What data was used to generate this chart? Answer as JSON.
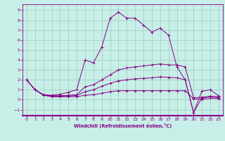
{
  "xlabel": "Windchill (Refroidissement éolien,°C)",
  "bg_color": "#c8eee8",
  "line_color": "#880088",
  "grid_color": "#99ccbb",
  "axis_color": "#880088",
  "xlim": [
    -0.5,
    23.5
  ],
  "ylim": [
    -1.6,
    9.6
  ],
  "xticks": [
    0,
    1,
    2,
    3,
    4,
    5,
    6,
    7,
    8,
    9,
    10,
    11,
    12,
    13,
    14,
    15,
    16,
    17,
    18,
    19,
    20,
    21,
    22,
    23
  ],
  "yticks": [
    -1,
    0,
    1,
    2,
    3,
    4,
    5,
    6,
    7,
    8,
    9
  ],
  "lines": [
    {
      "x": [
        0,
        1,
        2,
        3,
        4,
        5,
        6,
        7,
        8,
        9,
        10,
        11,
        12,
        13,
        14,
        15,
        16,
        17,
        18,
        19,
        20,
        21,
        22,
        23
      ],
      "y": [
        2.0,
        1.0,
        0.5,
        0.45,
        0.55,
        0.75,
        1.0,
        4.0,
        3.7,
        5.3,
        8.2,
        8.8,
        8.2,
        8.2,
        7.5,
        6.8,
        7.2,
        6.5,
        3.3,
        2.0,
        -1.3,
        0.85,
        1.0,
        0.4
      ]
    },
    {
      "x": [
        0,
        1,
        2,
        3,
        4,
        5,
        6,
        7,
        8,
        9,
        10,
        11,
        12,
        13,
        14,
        15,
        16,
        17,
        18,
        19,
        20,
        21,
        22,
        23
      ],
      "y": [
        2.0,
        1.0,
        0.5,
        0.4,
        0.4,
        0.45,
        0.5,
        1.3,
        1.5,
        2.0,
        2.5,
        3.0,
        3.2,
        3.3,
        3.4,
        3.5,
        3.6,
        3.5,
        3.5,
        3.3,
        0.2,
        0.25,
        0.35,
        0.3
      ]
    },
    {
      "x": [
        0,
        1,
        2,
        3,
        4,
        5,
        6,
        7,
        8,
        9,
        10,
        11,
        12,
        13,
        14,
        15,
        16,
        17,
        18,
        19,
        20,
        21,
        22,
        23
      ],
      "y": [
        2.0,
        1.0,
        0.45,
        0.35,
        0.35,
        0.38,
        0.42,
        0.8,
        1.0,
        1.35,
        1.65,
        1.9,
        2.0,
        2.1,
        2.15,
        2.2,
        2.3,
        2.25,
        2.2,
        2.0,
        -1.3,
        0.18,
        0.28,
        0.2
      ]
    },
    {
      "x": [
        0,
        1,
        2,
        3,
        4,
        5,
        6,
        7,
        8,
        9,
        10,
        11,
        12,
        13,
        14,
        15,
        16,
        17,
        18,
        19,
        20,
        21,
        22,
        23
      ],
      "y": [
        2.0,
        1.0,
        0.45,
        0.3,
        0.3,
        0.3,
        0.3,
        0.45,
        0.5,
        0.65,
        0.8,
        0.9,
        0.9,
        0.9,
        0.9,
        0.9,
        0.9,
        0.9,
        0.9,
        0.9,
        0.1,
        0.05,
        0.15,
        0.1
      ]
    }
  ]
}
